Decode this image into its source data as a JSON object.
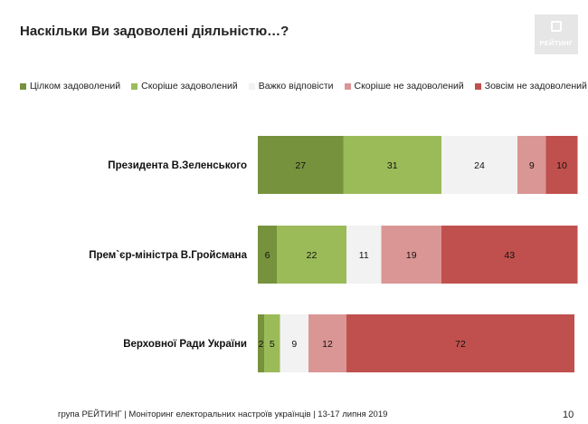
{
  "header": {
    "title": "Наскільки Ви задоволені діяльністю…?",
    "logo_text": "РЕЙТИНГ"
  },
  "footer": {
    "source": "група РЕЙТИНГ | Моніторинг електоральних настроїв українців | 13-17 липня 2019",
    "page_number": "10"
  },
  "chart_data": {
    "type": "bar",
    "orientation": "horizontal",
    "stacked": true,
    "normalized_to": 100,
    "categories": [
      "Президента В.Зеленського",
      "Прем`єр-міністра В.Гройсмана",
      "Верховної Ради України"
    ],
    "series": [
      {
        "name": "Цілком задоволений",
        "color": "#76923c",
        "values": [
          27,
          6,
          2
        ],
        "label_color": "#111111"
      },
      {
        "name": "Скоріше задоволений",
        "color": "#9bbb59",
        "values": [
          31,
          22,
          5
        ],
        "label_color": "#111111"
      },
      {
        "name": "Важко відповісти",
        "color": "#f2f2f2",
        "values": [
          24,
          11,
          9
        ],
        "label_color": "#111111"
      },
      {
        "name": "Скоріше не задоволений",
        "color": "#da9694",
        "values": [
          9,
          19,
          12
        ],
        "label_color": "#111111"
      },
      {
        "name": "Зовсім не задоволений",
        "color": "#c0504d",
        "values": [
          10,
          43,
          72
        ],
        "label_color": "#111111"
      }
    ],
    "legend_position": "top",
    "grid": false,
    "data_labels": true
  }
}
